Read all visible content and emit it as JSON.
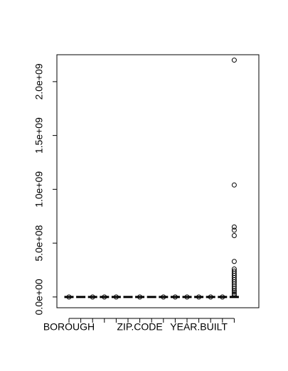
{
  "chart_data": {
    "type": "boxplot",
    "title": "",
    "xlabel": "",
    "ylabel": "",
    "ylim": [
      -100000000,
      2250000000
    ],
    "grid": false,
    "legend": "none",
    "y_ticks": [
      {
        "value": 0,
        "label": "0.0e+00"
      },
      {
        "value": 500000000,
        "label": "5.0e+08"
      },
      {
        "value": 1000000000,
        "label": "1.0e+09"
      },
      {
        "value": 1500000000,
        "label": "1.5e+09"
      },
      {
        "value": 2000000000,
        "label": "2.0e+09"
      }
    ],
    "x_tick_labels": [
      {
        "index": 0,
        "label": "BOROUGH"
      },
      {
        "index": 6,
        "label": "ZIP.CODE"
      },
      {
        "index": 11,
        "label": "YEAR.BUILT"
      }
    ],
    "box_count": 15,
    "boxes": [
      {
        "index": 0,
        "median": 0,
        "outliers": [
          0
        ]
      },
      {
        "index": 1,
        "median": 0,
        "outliers": []
      },
      {
        "index": 2,
        "median": 0,
        "outliers": [
          0
        ]
      },
      {
        "index": 3,
        "median": 0,
        "outliers": [
          0
        ]
      },
      {
        "index": 4,
        "median": 0,
        "outliers": [
          0
        ]
      },
      {
        "index": 5,
        "median": 0,
        "outliers": []
      },
      {
        "index": 6,
        "median": 0,
        "outliers": [
          0
        ]
      },
      {
        "index": 7,
        "median": 0,
        "outliers": []
      },
      {
        "index": 8,
        "median": 0,
        "outliers": [
          0
        ]
      },
      {
        "index": 9,
        "median": 0,
        "outliers": [
          0
        ]
      },
      {
        "index": 10,
        "median": 0,
        "outliers": [
          0
        ]
      },
      {
        "index": 11,
        "median": 0,
        "outliers": [
          0
        ]
      },
      {
        "index": 12,
        "median": 0,
        "outliers": [
          0
        ]
      },
      {
        "index": 13,
        "median": 0,
        "outliers": [
          0
        ]
      },
      {
        "index": 14,
        "median": 0,
        "outliers": [
          2200000000,
          1040000000,
          650000000,
          620000000,
          570000000,
          330000000,
          260000000,
          240000000,
          220000000,
          200000000,
          180000000,
          160000000,
          140000000,
          120000000,
          100000000,
          80000000,
          60000000,
          45000000,
          30000000,
          15000000
        ]
      }
    ]
  }
}
